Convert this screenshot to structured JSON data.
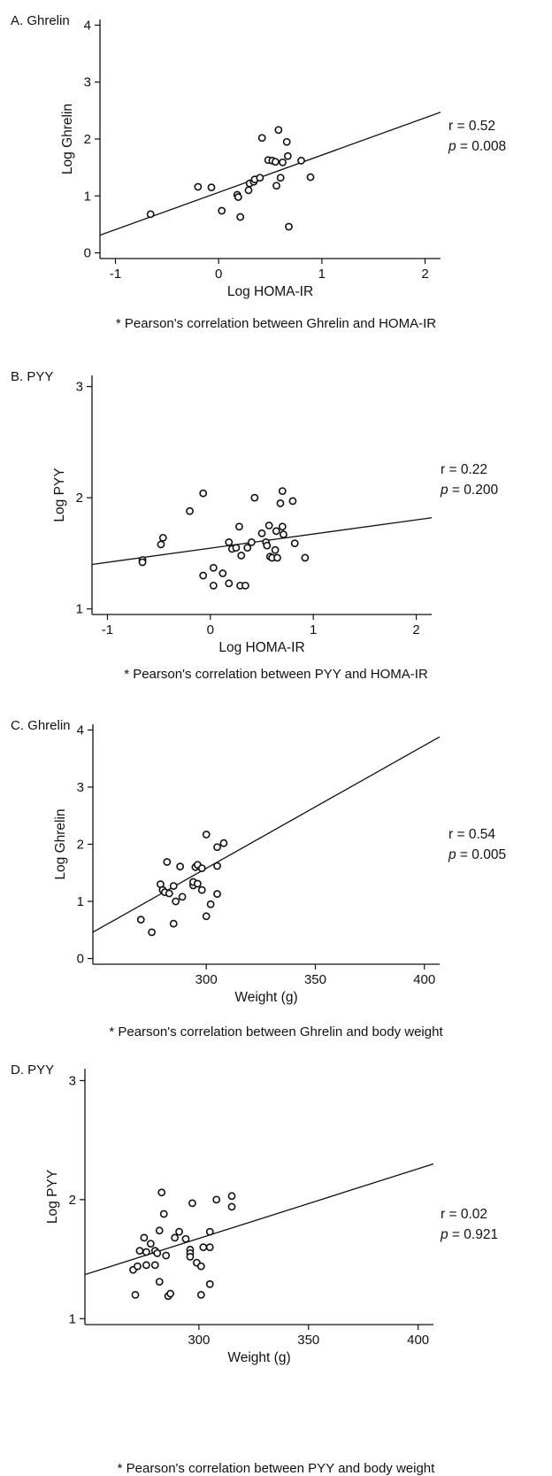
{
  "chart_data": [
    {
      "type": "scatter",
      "panel_label": "A. Ghrelin",
      "xlabel": "Log HOMA-IR",
      "ylabel": "Log Ghrelin",
      "xlim": [
        -1.15,
        2.15
      ],
      "ylim": [
        -0.1,
        4.1
      ],
      "xticks": [
        -1,
        0,
        1,
        2
      ],
      "yticks": [
        0,
        1,
        2,
        3,
        4
      ],
      "fit_line": [
        [
          -1.15,
          0.31
        ],
        [
          2.15,
          2.47
        ]
      ],
      "stats": {
        "r": "r = 0.52",
        "p_prefix": "p",
        "p_rest": " = 0.008"
      },
      "footnote": "* Pearson's correlation between Ghrelin and HOMA-IR",
      "points": [
        [
          -0.66,
          0.68
        ],
        [
          -0.2,
          1.16
        ],
        [
          -0.07,
          1.15
        ],
        [
          0.03,
          0.74
        ],
        [
          0.18,
          1.02
        ],
        [
          0.19,
          0.98
        ],
        [
          0.21,
          0.63
        ],
        [
          0.29,
          1.1
        ],
        [
          0.3,
          1.22
        ],
        [
          0.34,
          1.25
        ],
        [
          0.35,
          1.29
        ],
        [
          0.4,
          1.32
        ],
        [
          0.42,
          2.02
        ],
        [
          0.48,
          1.63
        ],
        [
          0.52,
          1.62
        ],
        [
          0.55,
          1.6
        ],
        [
          0.56,
          1.18
        ],
        [
          0.58,
          2.16
        ],
        [
          0.6,
          1.32
        ],
        [
          0.62,
          1.59
        ],
        [
          0.66,
          1.95
        ],
        [
          0.67,
          1.7
        ],
        [
          0.68,
          0.46
        ],
        [
          0.8,
          1.62
        ],
        [
          0.89,
          1.33
        ]
      ]
    },
    {
      "type": "scatter",
      "panel_label": "B. PYY",
      "xlabel": "Log HOMA-IR",
      "ylabel": "Log PYY",
      "xlim": [
        -1.15,
        2.15
      ],
      "ylim": [
        0.95,
        3.1
      ],
      "xticks": [
        -1,
        0,
        1,
        2
      ],
      "yticks": [
        1,
        2,
        3
      ],
      "fit_line": [
        [
          -1.15,
          1.4
        ],
        [
          2.15,
          1.82
        ]
      ],
      "stats": {
        "r": "r = 0.22",
        "p_prefix": "p",
        "p_rest": " = 0.200"
      },
      "footnote": "* Pearson's correlation between PYY and HOMA-IR",
      "points": [
        [
          -0.66,
          1.44
        ],
        [
          -0.66,
          1.42
        ],
        [
          -0.48,
          1.58
        ],
        [
          -0.46,
          1.64
        ],
        [
          -0.2,
          1.88
        ],
        [
          -0.07,
          2.04
        ],
        [
          -0.07,
          1.3
        ],
        [
          0.03,
          1.37
        ],
        [
          0.03,
          1.21
        ],
        [
          0.12,
          1.32
        ],
        [
          0.18,
          1.6
        ],
        [
          0.18,
          1.23
        ],
        [
          0.21,
          1.54
        ],
        [
          0.25,
          1.55
        ],
        [
          0.28,
          1.74
        ],
        [
          0.29,
          1.21
        ],
        [
          0.3,
          1.48
        ],
        [
          0.34,
          1.21
        ],
        [
          0.36,
          1.55
        ],
        [
          0.4,
          1.6
        ],
        [
          0.43,
          2.0
        ],
        [
          0.5,
          1.68
        ],
        [
          0.54,
          1.6
        ],
        [
          0.55,
          1.57
        ],
        [
          0.57,
          1.75
        ],
        [
          0.58,
          1.47
        ],
        [
          0.6,
          1.46
        ],
        [
          0.63,
          1.53
        ],
        [
          0.64,
          1.7
        ],
        [
          0.65,
          1.46
        ],
        [
          0.68,
          1.95
        ],
        [
          0.7,
          2.06
        ],
        [
          0.7,
          1.74
        ],
        [
          0.71,
          1.67
        ],
        [
          0.8,
          1.97
        ],
        [
          0.82,
          1.59
        ],
        [
          0.92,
          1.46
        ]
      ]
    },
    {
      "type": "scatter",
      "panel_label": "C. Ghrelin",
      "xlabel": "Weight (g)",
      "ylabel": "Log Ghrelin",
      "xlim": [
        248,
        407
      ],
      "ylim": [
        -0.1,
        4.1
      ],
      "xticks": [
        300,
        350,
        400
      ],
      "yticks": [
        0,
        1,
        2,
        3,
        4
      ],
      "fit_line": [
        [
          248,
          0.46
        ],
        [
          407,
          3.88
        ]
      ],
      "stats": {
        "r": "r = 0.54",
        "p_prefix": "p",
        "p_rest": " = 0.005"
      },
      "footnote": "* Pearson's correlation between Ghrelin and body weight",
      "points": [
        [
          270,
          0.68
        ],
        [
          275,
          0.46
        ],
        [
          279,
          1.3
        ],
        [
          280,
          1.2
        ],
        [
          281,
          1.16
        ],
        [
          282,
          1.69
        ],
        [
          283,
          1.14
        ],
        [
          285,
          1.27
        ],
        [
          285,
          0.61
        ],
        [
          286,
          1.0
        ],
        [
          288,
          1.61
        ],
        [
          289,
          1.08
        ],
        [
          294,
          1.28
        ],
        [
          294,
          1.34
        ],
        [
          295,
          1.6
        ],
        [
          296,
          1.64
        ],
        [
          296,
          1.31
        ],
        [
          298,
          1.58
        ],
        [
          298,
          1.2
        ],
        [
          300,
          2.17
        ],
        [
          300,
          0.74
        ],
        [
          302,
          0.95
        ],
        [
          305,
          1.95
        ],
        [
          305,
          1.62
        ],
        [
          305,
          1.13
        ],
        [
          308,
          2.02
        ]
      ]
    },
    {
      "type": "scatter",
      "panel_label": "D. PYY",
      "xlabel": "Weight (g)",
      "ylabel": "Log PYY",
      "xlim": [
        248,
        407
      ],
      "ylim": [
        0.95,
        3.1
      ],
      "xticks": [
        300,
        350,
        400
      ],
      "yticks": [
        1,
        2,
        3
      ],
      "fit_line": [
        [
          248,
          1.37
        ],
        [
          407,
          2.3
        ]
      ],
      "stats": {
        "r": "r = 0.02",
        "p_prefix": "p",
        "p_rest": " = 0.921"
      },
      "footnote": "* Pearson's correlation between PYY and body weight",
      "points": [
        [
          270,
          1.41
        ],
        [
          271,
          1.2
        ],
        [
          272,
          1.44
        ],
        [
          273,
          1.57
        ],
        [
          275,
          1.68
        ],
        [
          276,
          1.56
        ],
        [
          276,
          1.45
        ],
        [
          278,
          1.63
        ],
        [
          280,
          1.57
        ],
        [
          280,
          1.45
        ],
        [
          281,
          1.55
        ],
        [
          282,
          1.31
        ],
        [
          282,
          1.74
        ],
        [
          283,
          2.06
        ],
        [
          284,
          1.88
        ],
        [
          285,
          1.53
        ],
        [
          286,
          1.19
        ],
        [
          287,
          1.21
        ],
        [
          289,
          1.68
        ],
        [
          291,
          1.73
        ],
        [
          294,
          1.67
        ],
        [
          296,
          1.58
        ],
        [
          296,
          1.55
        ],
        [
          296,
          1.52
        ],
        [
          297,
          1.97
        ],
        [
          299,
          1.47
        ],
        [
          301,
          1.2
        ],
        [
          301,
          1.44
        ],
        [
          302,
          1.6
        ],
        [
          305,
          1.29
        ],
        [
          305,
          1.6
        ],
        [
          305,
          1.73
        ],
        [
          308,
          2.0
        ],
        [
          315,
          2.03
        ],
        [
          315,
          1.94
        ]
      ]
    }
  ]
}
